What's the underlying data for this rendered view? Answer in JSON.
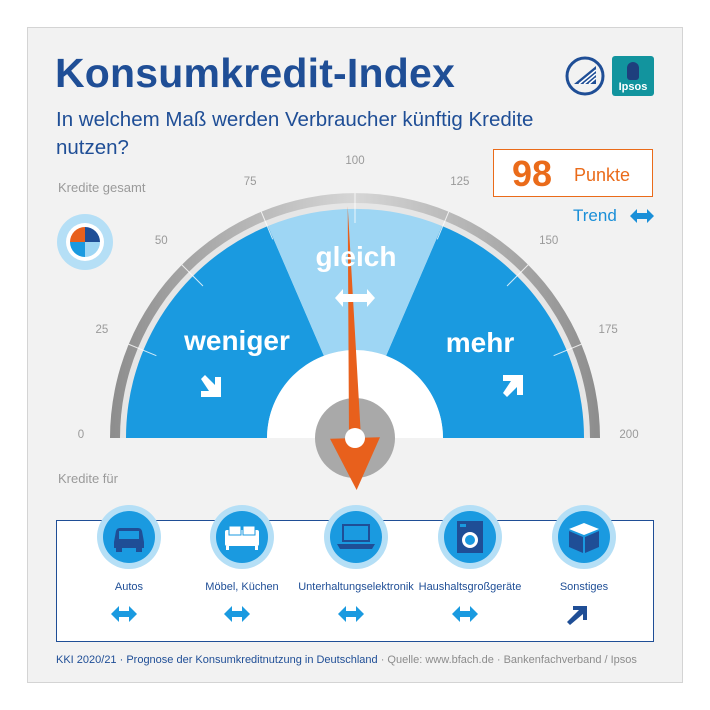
{
  "header": {
    "title": "Konsumkredit-Index",
    "subtitle": "In welchem Maß werden Verbraucher künftig Kredite nutzen?"
  },
  "logos": {
    "ipsos": "Ipsos"
  },
  "score": {
    "value": "98",
    "unit": "Punkte",
    "trend_label": "Trend",
    "trend_icon": "left-right-arrow-icon"
  },
  "gauge": {
    "section_label": "Kredite gesamt",
    "ticks": [
      "0",
      "25",
      "50",
      "75",
      "100",
      "125",
      "150",
      "175",
      "200"
    ],
    "zones": {
      "left": "weniger",
      "middle": "gleich",
      "right": "mehr"
    },
    "needle_value": 98,
    "scale_min": 0,
    "scale_max": 200,
    "colors": {
      "zone": "#1a9ae0",
      "middle": "#9ed6f4",
      "needle": "#e8601c",
      "ring": "#a9a9a9"
    }
  },
  "categories": {
    "section_label": "Kredite für",
    "items": [
      {
        "label": "Autos",
        "icon": "car-icon",
        "trend": "left-right-arrow-icon"
      },
      {
        "label": "Möbel, Küchen",
        "icon": "sofa-icon",
        "trend": "left-right-arrow-icon"
      },
      {
        "label": "Unterhaltungselektronik",
        "icon": "laptop-icon",
        "trend": "left-right-arrow-icon"
      },
      {
        "label": "Haushaltsgroßgeräte",
        "icon": "washing-machine-icon",
        "trend": "left-right-arrow-icon"
      },
      {
        "label": "Sonstiges",
        "icon": "box-icon",
        "trend": "up-right-arrow-icon"
      }
    ]
  },
  "footer": {
    "main": "KKI 2020/21 · Prognose der Konsumkreditnutzung in Deutschland",
    "source": " · Quelle: www.bfach.de · Bankenfachverband / Ipsos"
  }
}
